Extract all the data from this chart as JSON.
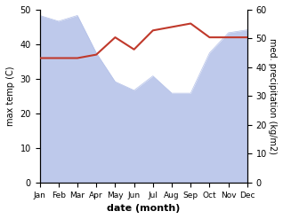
{
  "months": [
    "Jan",
    "Feb",
    "Mar",
    "Apr",
    "May",
    "Jun",
    "Jul",
    "Aug",
    "Sep",
    "Oct",
    "Nov",
    "Dec"
  ],
  "x": [
    0,
    1,
    2,
    3,
    4,
    5,
    6,
    7,
    8,
    9,
    10,
    11
  ],
  "precipitation": [
    58,
    56,
    58,
    45,
    35,
    32,
    37,
    31,
    31,
    45,
    52,
    53
  ],
  "max_temp": [
    36,
    36,
    36,
    37,
    42,
    38.5,
    44,
    45,
    46,
    42,
    42,
    42
  ],
  "temp_ylim": [
    0,
    50
  ],
  "precip_ylim": [
    0,
    60
  ],
  "precip_color_fill": "#b3c0e8",
  "precip_color_line": "#b3c0e8",
  "temp_color": "#c0392b",
  "xlabel": "date (month)",
  "ylabel_left": "max temp (C)",
  "ylabel_right": "med. precipitation (kg/m2)",
  "bg_color": "#ffffff",
  "title": ""
}
